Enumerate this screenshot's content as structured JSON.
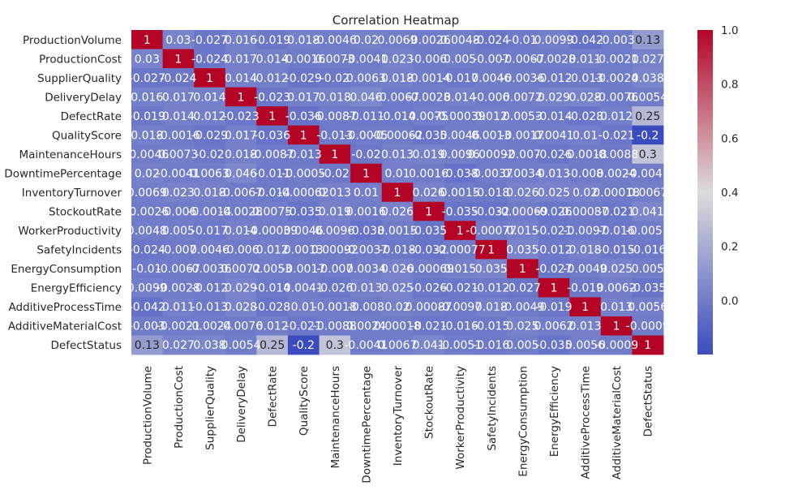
{
  "chart_data": {
    "type": "heatmap",
    "title": "Correlation Heatmap",
    "colormap": "coolwarm",
    "color_low": "#3b4cc0",
    "color_mid": "#dddcdc",
    "color_high": "#b40426",
    "colorbar_ticks": [
      "0.0",
      "0.2",
      "0.4",
      "0.6",
      "0.8",
      "1.0"
    ],
    "colorbar_tick_values": [
      0.0,
      0.2,
      0.4,
      0.6,
      0.8,
      1.0
    ],
    "colorbar_range": [
      -0.2,
      1.0
    ],
    "labels": [
      "ProductionVolume",
      "ProductionCost",
      "SupplierQuality",
      "DeliveryDelay",
      "DefectRate",
      "QualityScore",
      "MaintenanceHours",
      "DowntimePercentage",
      "InventoryTurnover",
      "StockoutRate",
      "WorkerProductivity",
      "SafetyIncidents",
      "EnergyConsumption",
      "EnergyEfficiency",
      "AdditiveProcessTime",
      "AdditiveMaterialCost",
      "DefectStatus"
    ],
    "values": [
      [
        1,
        0.03,
        -0.027,
        0.016,
        -0.019,
        0.018,
        -0.0046,
        0.02,
        0.0069,
        -0.0026,
        0.0048,
        -0.024,
        -0.01,
        0.0099,
        -0.042,
        -0.003,
        0.13
      ],
      [
        0.03,
        1,
        -0.024,
        0.017,
        0.014,
        -0.0016,
        0.0073,
        -0.0041,
        0.023,
        -0.006,
        0.005,
        -0.007,
        -0.0067,
        -0.0028,
        0.011,
        -0.0021,
        0.027
      ],
      [
        -0.027,
        -0.024,
        1,
        0.014,
        0.012,
        -0.029,
        -0.02,
        0.0063,
        0.018,
        -0.0014,
        -0.017,
        0.0046,
        -0.0036,
        -0.012,
        -0.013,
        -0.0024,
        0.038
      ],
      [
        0.016,
        0.017,
        0.014,
        1,
        -0.023,
        0.017,
        0.018,
        0.046,
        -0.0067,
        -0.0028,
        0.014,
        -0.006,
        0.0072,
        0.029,
        0.028,
        -0.0076,
        0.0054
      ],
      [
        -0.019,
        0.014,
        0.012,
        -0.023,
        1,
        -0.036,
        -0.0087,
        -0.011,
        -0.014,
        0.0075,
        -0.00039,
        0.012,
        0.0053,
        -0.014,
        -0.028,
        0.012,
        0.25
      ],
      [
        0.018,
        -0.0016,
        -0.029,
        0.017,
        -0.036,
        1,
        -0.013,
        -0.0005,
        -0.00062,
        -0.035,
        0.0046,
        0.0013,
        -0.0017,
        0.0041,
        0.01,
        -0.021,
        -0.2
      ],
      [
        -0.0046,
        0.0073,
        -0.02,
        0.018,
        -0.0087,
        -0.013,
        1,
        -0.02,
        0.013,
        0.019,
        0.0096,
        0.00092,
        -0.007,
        -0.026,
        -0.0018,
        -0.0088,
        0.3
      ],
      [
        0.02,
        -0.0041,
        0.0063,
        0.046,
        -0.011,
        -0.0005,
        -0.02,
        1,
        0.01,
        0.0016,
        -0.038,
        -0.0037,
        0.0034,
        0.013,
        -0.008,
        0.0024,
        -0.0041
      ],
      [
        0.0069,
        0.023,
        0.018,
        -0.0067,
        -0.014,
        -0.00062,
        0.013,
        0.01,
        1,
        0.026,
        0.0015,
        -0.018,
        0.026,
        0.025,
        0.02,
        0.00018,
        0.0067
      ],
      [
        -0.0026,
        -0.006,
        -0.0014,
        -0.0028,
        0.0075,
        -0.035,
        0.019,
        0.0016,
        0.026,
        1,
        -0.035,
        -0.032,
        -0.00069,
        -0.026,
        0.00087,
        -0.021,
        0.041
      ],
      [
        0.0048,
        0.005,
        -0.017,
        0.014,
        -0.00039,
        0.0046,
        0.0096,
        -0.038,
        0.0015,
        -0.035,
        1,
        -0.00077,
        0.015,
        -0.021,
        -0.0097,
        -0.016,
        -0.0051
      ],
      [
        -0.024,
        -0.007,
        0.0046,
        -0.006,
        0.012,
        0.0013,
        0.00092,
        -0.0037,
        -0.018,
        -0.032,
        -0.00077,
        1,
        0.035,
        -0.012,
        0.018,
        -0.015,
        -0.016
      ],
      [
        -0.01,
        -0.0067,
        -0.0036,
        0.0072,
        0.0053,
        -0.0017,
        -0.007,
        0.0034,
        0.026,
        -0.00069,
        0.015,
        0.035,
        1,
        -0.027,
        -0.0049,
        0.025,
        0.005
      ],
      [
        0.0099,
        -0.0028,
        -0.012,
        0.029,
        -0.014,
        0.0041,
        -0.026,
        0.013,
        0.025,
        -0.026,
        -0.021,
        -0.012,
        -0.027,
        1,
        -0.019,
        0.0062,
        -0.035
      ],
      [
        -0.042,
        0.011,
        -0.013,
        0.028,
        -0.028,
        0.01,
        -0.0018,
        -0.008,
        0.02,
        0.00087,
        -0.0097,
        0.018,
        -0.0049,
        -0.019,
        1,
        0.013,
        0.0056
      ],
      [
        -0.003,
        -0.0021,
        -0.0024,
        -0.0076,
        0.012,
        -0.021,
        -0.0088,
        0.0024,
        0.00018,
        -0.021,
        -0.016,
        -0.015,
        0.025,
        0.0062,
        0.013,
        1,
        -0.0009
      ],
      [
        0.13,
        0.027,
        0.038,
        0.0054,
        0.25,
        -0.2,
        0.3,
        -0.0041,
        0.0067,
        0.041,
        -0.0051,
        -0.016,
        0.005,
        -0.035,
        0.0056,
        -0.0009,
        1
      ]
    ]
  }
}
